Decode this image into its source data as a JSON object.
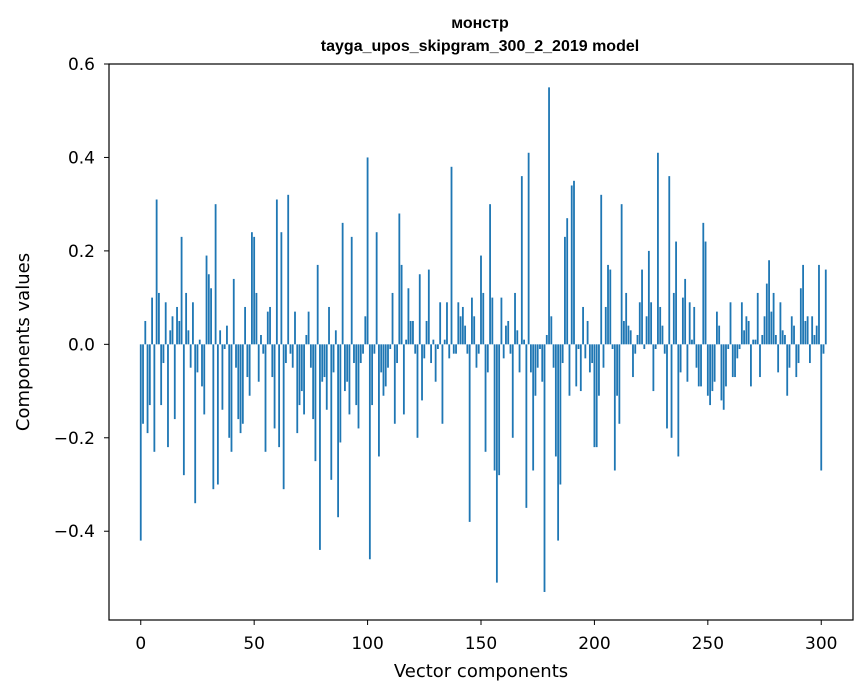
{
  "chart_data": {
    "type": "bar",
    "title_line1": "монстр",
    "title_line2": "tayga_upos_skipgram_300_2_2019 model",
    "xlabel": "Vector components",
    "ylabel": "Components values",
    "xlim": [
      -14,
      314
    ],
    "ylim": [
      -0.59,
      0.6
    ],
    "xticks": [
      0,
      50,
      100,
      150,
      200,
      250,
      300
    ],
    "xtick_labels": [
      "0",
      "50",
      "100",
      "150",
      "200",
      "250",
      "300"
    ],
    "yticks": [
      -0.4,
      -0.2,
      0.0,
      0.2,
      0.4,
      0.6
    ],
    "ytick_labels": [
      "−0.4",
      "−0.2",
      "0.0",
      "0.2",
      "0.4",
      "0.6"
    ],
    "bar_color": "#1f77b4",
    "values": [
      -0.42,
      -0.17,
      0.05,
      -0.19,
      -0.13,
      0.1,
      -0.23,
      0.31,
      0.11,
      -0.13,
      -0.04,
      0.09,
      -0.22,
      0.03,
      0.06,
      -0.16,
      0.08,
      0.05,
      0.23,
      -0.28,
      0.11,
      0.03,
      -0.05,
      0.09,
      -0.34,
      -0.06,
      0.01,
      -0.09,
      -0.15,
      0.19,
      0.15,
      0.12,
      -0.31,
      0.3,
      -0.3,
      0.03,
      -0.14,
      -0.01,
      0.04,
      -0.2,
      -0.23,
      0.14,
      -0.05,
      -0.16,
      -0.19,
      -0.17,
      0.08,
      -0.07,
      -0.11,
      0.24,
      0.23,
      0.11,
      -0.08,
      0.02,
      -0.02,
      -0.23,
      0.07,
      0.08,
      -0.07,
      -0.18,
      0.31,
      -0.22,
      0.24,
      -0.31,
      -0.04,
      0.32,
      -0.02,
      -0.05,
      0.07,
      -0.19,
      -0.13,
      -0.1,
      -0.15,
      0.02,
      0.07,
      -0.05,
      -0.16,
      -0.25,
      0.17,
      -0.44,
      -0.08,
      -0.07,
      -0.14,
      0.08,
      -0.29,
      -0.06,
      0.03,
      -0.37,
      -0.21,
      0.26,
      -0.1,
      -0.08,
      -0.15,
      0.23,
      -0.04,
      -0.13,
      -0.18,
      -0.04,
      -0.02,
      0.06,
      0.4,
      -0.46,
      -0.13,
      -0.02,
      0.24,
      -0.24,
      -0.06,
      -0.11,
      -0.09,
      -0.05,
      -0.01,
      0.11,
      -0.17,
      -0.04,
      0.28,
      0.17,
      -0.15,
      0.01,
      0.12,
      0.05,
      0.05,
      -0.02,
      -0.2,
      0.15,
      -0.12,
      -0.03,
      0.05,
      0.16,
      -0.04,
      0.01,
      -0.08,
      -0.01,
      0.09,
      -0.17,
      0.01,
      0.09,
      -0.03,
      0.38,
      -0.02,
      -0.02,
      0.09,
      0.06,
      0.08,
      0.04,
      -0.02,
      -0.38,
      0.1,
      0.06,
      -0.05,
      -0.02,
      0.19,
      0.11,
      -0.23,
      -0.06,
      0.3,
      0.1,
      -0.27,
      -0.51,
      -0.28,
      0.1,
      -0.03,
      0.04,
      0.05,
      -0.02,
      -0.2,
      0.11,
      0.03,
      -0.06,
      0.36,
      0.01,
      -0.35,
      0.41,
      -0.06,
      -0.27,
      -0.11,
      -0.05,
      -0.01,
      -0.08,
      -0.53,
      0.02,
      0.55,
      0.06,
      -0.05,
      -0.24,
      -0.42,
      -0.3,
      -0.04,
      0.23,
      0.27,
      -0.11,
      0.34,
      0.35,
      -0.09,
      -0.01,
      -0.1,
      0.08,
      -0.03,
      0.05,
      -0.06,
      -0.04,
      -0.22,
      -0.22,
      -0.11,
      0.32,
      -0.05,
      0.08,
      0.17,
      0.16,
      -0.01,
      -0.27,
      -0.11,
      -0.17,
      0.3,
      0.05,
      0.11,
      0.04,
      0.03,
      -0.07,
      -0.02,
      0.02,
      0.09,
      0.16,
      -0.01,
      0.06,
      0.2,
      0.09,
      -0.1,
      -0.01,
      0.41,
      0.08,
      0.04,
      -0.02,
      -0.18,
      0.36,
      -0.2,
      0.11,
      0.22,
      -0.24,
      -0.06,
      0.1,
      0.14,
      -0.08,
      0.09,
      0.01,
      0.08,
      -0.05,
      -0.09,
      -0.09,
      0.26,
      0.22,
      -0.11,
      -0.13,
      -0.1,
      -0.08,
      0.07,
      0.04,
      -0.12,
      -0.14,
      -0.09,
      -0.01,
      0.09,
      -0.07,
      -0.07,
      -0.03,
      -0.01,
      0.09,
      0.03,
      0.06,
      0.05,
      -0.09,
      0.01,
      0.01,
      0.11,
      -0.07,
      0.02,
      0.06,
      0.13,
      0.18,
      0.07,
      0.11,
      0.02,
      -0.06,
      0.09,
      0.03,
      0.02,
      -0.11,
      -0.05,
      0.06,
      0.04,
      -0.07,
      -0.04,
      0.12,
      0.17,
      0.05,
      0.06,
      -0.04,
      0.06,
      0.02,
      0.04,
      0.17,
      -0.27,
      -0.02,
      0.16
    ]
  }
}
